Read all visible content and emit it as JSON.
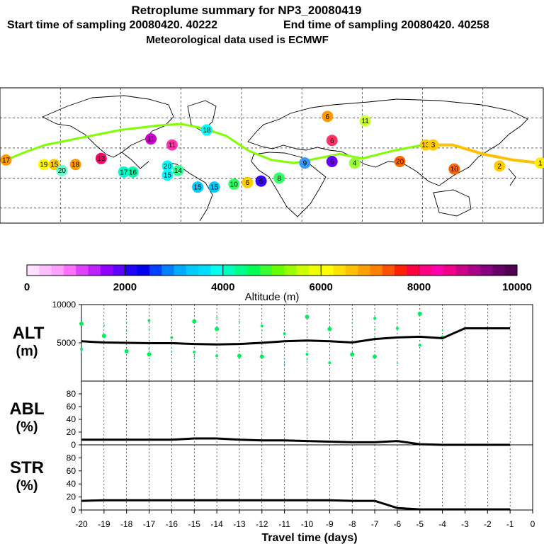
{
  "header": {
    "title": "Retroplume summary for NP3_20080419",
    "start_time": "Start time of sampling 20080420. 40222",
    "end_time": "End time of sampling 20080420. 40258",
    "met_data": "Meteorological data used is ECMWF"
  },
  "colors": {
    "plume_line_early": "#ffc000",
    "plume_line_late": "#80ff00",
    "alt_points": "#00ee60",
    "profile_line": "#000000"
  },
  "chart_data": [
    {
      "type": "map",
      "title": "Retroplume trajectory map",
      "labels": [
        {
          "text": "17",
          "lon": -176,
          "lat": 42,
          "color": "#ff9900"
        },
        {
          "text": "19",
          "lon": -151,
          "lat": 39,
          "color": "#ffff00"
        },
        {
          "text": "15",
          "lon": -144,
          "lat": 39,
          "color": "#ffcc00"
        },
        {
          "text": "20",
          "lon": -139,
          "lat": 35,
          "color": "#66ffcc"
        },
        {
          "text": "18",
          "lon": -130,
          "lat": 39,
          "color": "#ff9900"
        },
        {
          "text": "13",
          "lon": -113,
          "lat": 43,
          "color": "#ff0066"
        },
        {
          "text": "17",
          "lon": -98,
          "lat": 34,
          "color": "#00ffcc"
        },
        {
          "text": "16",
          "lon": -92,
          "lat": 34,
          "color": "#00ffaa"
        },
        {
          "text": "11",
          "lon": -80,
          "lat": 56,
          "color": "#cc00cc"
        },
        {
          "text": "11",
          "lon": -66,
          "lat": 52,
          "color": "#ff33aa"
        },
        {
          "text": "20",
          "lon": -69,
          "lat": 38,
          "color": "#00ffff"
        },
        {
          "text": "15",
          "lon": -69,
          "lat": 32,
          "color": "#00ffff"
        },
        {
          "text": "14",
          "lon": -62,
          "lat": 35,
          "color": "#33ff99"
        },
        {
          "text": "18",
          "lon": -43,
          "lat": 62,
          "color": "#00ffff"
        },
        {
          "text": "15",
          "lon": -49,
          "lat": 24,
          "color": "#00ccff"
        },
        {
          "text": "15",
          "lon": -38,
          "lat": 24,
          "color": "#00ccff"
        },
        {
          "text": "10",
          "lon": -25,
          "lat": 26,
          "color": "#33ff66"
        },
        {
          "text": "6",
          "lon": -16,
          "lat": 27,
          "color": "#ffcc00"
        },
        {
          "text": "5",
          "lon": -7,
          "lat": 28,
          "color": "#3300ff"
        },
        {
          "text": "8",
          "lon": 5,
          "lat": 30,
          "color": "#33ff66"
        },
        {
          "text": "9",
          "lon": 22,
          "lat": 40,
          "color": "#3399ff"
        },
        {
          "text": "6",
          "lon": 40,
          "lat": 41,
          "color": "#6600ff"
        },
        {
          "text": "4",
          "lon": 55,
          "lat": 40,
          "color": "#99ff33"
        },
        {
          "text": "6",
          "lon": 40,
          "lat": 55,
          "color": "#ff3366"
        },
        {
          "text": "6",
          "lon": 37,
          "lat": 71,
          "color": "#ff9900"
        },
        {
          "text": "11",
          "lon": 62,
          "lat": 68,
          "color": "#ccff33"
        },
        {
          "text": "20",
          "lon": 85,
          "lat": 41,
          "color": "#ff6600"
        },
        {
          "text": "13",
          "lon": 102,
          "lat": 52,
          "color": "#ffcc00"
        },
        {
          "text": "3",
          "lon": 107,
          "lat": 52,
          "color": "#ffcc00"
        },
        {
          "text": "10",
          "lon": 121,
          "lat": 36,
          "color": "#ff6600"
        },
        {
          "text": "2",
          "lon": 151,
          "lat": 38,
          "color": "#ffcc00"
        },
        {
          "text": "1",
          "lon": 178,
          "lat": 40,
          "color": "#ffee00"
        }
      ]
    },
    {
      "type": "colorbar",
      "xlabel": "Altitude (m)",
      "ticks": [
        0,
        2000,
        4000,
        6000,
        8000,
        10000
      ],
      "range": [
        0,
        10000
      ],
      "colors": [
        "#ffe0ff",
        "#ffbfff",
        "#ff9fff",
        "#ff70ff",
        "#e040ff",
        "#c020ff",
        "#9000ff",
        "#6000ff",
        "#2000ff",
        "#0000ee",
        "#0040ff",
        "#0080ff",
        "#00aaff",
        "#00ccff",
        "#00ddff",
        "#00ffee",
        "#00ffbb",
        "#00ff88",
        "#00ff55",
        "#33ff33",
        "#66ff00",
        "#99ff00",
        "#ccff00",
        "#eeff00",
        "#ffff00",
        "#ffe000",
        "#ffc000",
        "#ffa000",
        "#ff8000",
        "#ff5000",
        "#ff2000",
        "#ff0040",
        "#ff0080",
        "#ff00aa",
        "#ee0088",
        "#cc0088",
        "#aa0088",
        "#880080",
        "#660066",
        "#500050"
      ]
    },
    {
      "type": "scatter",
      "ylabel_line1": "ALT",
      "ylabel_line2": "(m)",
      "ylim": [
        0,
        10000
      ],
      "yticks": [
        5000,
        10000
      ],
      "xlim": [
        -20,
        0
      ],
      "median_line": {
        "x": [
          -20,
          -19,
          -18,
          -17,
          -16,
          -15,
          -14,
          -13,
          -12,
          -11,
          -10,
          -9,
          -8,
          -7,
          -6,
          -5,
          -4,
          -3,
          -2,
          -1
        ],
        "y": [
          5200,
          5050,
          5000,
          4950,
          4950,
          4850,
          4800,
          4850,
          5000,
          5200,
          5300,
          5200,
          5050,
          5500,
          5700,
          5800,
          5600,
          6900,
          6900,
          6900
        ]
      },
      "points": [
        {
          "x": -20,
          "y": [
            7500,
            6000,
            4200,
            3800
          ]
        },
        {
          "x": -19,
          "y": [
            7300,
            5900,
            3600
          ]
        },
        {
          "x": -18,
          "y": [
            7700,
            6500,
            3900,
            3400
          ]
        },
        {
          "x": -17,
          "y": [
            7900,
            6800,
            4200,
            3500
          ]
        },
        {
          "x": -16,
          "y": [
            7300,
            5700,
            4300,
            3800
          ]
        },
        {
          "x": -15,
          "y": [
            7800,
            6500,
            3800,
            3200
          ]
        },
        {
          "x": -14,
          "y": [
            8300,
            6800,
            3900,
            3300
          ]
        },
        {
          "x": -13,
          "y": [
            7800,
            6600,
            3300
          ]
        },
        {
          "x": -12,
          "y": [
            7200,
            6600,
            3700,
            3200
          ]
        },
        {
          "x": -11,
          "y": [
            8500,
            6200,
            2900,
            2200
          ]
        },
        {
          "x": -10,
          "y": [
            8400,
            6100,
            3500,
            2800
          ]
        },
        {
          "x": -9,
          "y": [
            8000,
            6800,
            3000,
            2400
          ]
        },
        {
          "x": -8,
          "y": [
            7600,
            5200,
            3500,
            2700
          ]
        },
        {
          "x": -7,
          "y": [
            8200,
            6800,
            5800,
            3200
          ]
        },
        {
          "x": -6,
          "y": [
            7800,
            6900,
            2300
          ]
        },
        {
          "x": -5,
          "y": [
            8800,
            5800,
            4700
          ]
        },
        {
          "x": -4,
          "y": [
            6600,
            5700
          ]
        },
        {
          "x": -3,
          "y": [
            7000
          ]
        },
        {
          "x": -2,
          "y": [
            6900
          ]
        },
        {
          "x": -1,
          "y": [
            6900
          ]
        }
      ]
    },
    {
      "type": "line",
      "ylabel_line1": "ABL",
      "ylabel_line2": "(%)",
      "ylim": [
        0,
        100
      ],
      "yticks": [
        0,
        20,
        40,
        60,
        80
      ],
      "x": [
        -20,
        -19,
        -18,
        -17,
        -16,
        -15,
        -14,
        -13,
        -12,
        -11,
        -10,
        -9,
        -8,
        -7,
        -6,
        -5,
        -4,
        -3,
        -2,
        -1
      ],
      "y": [
        8,
        8,
        8,
        8,
        8,
        10,
        10,
        8,
        7,
        7,
        6,
        5,
        4,
        4,
        6,
        1,
        0,
        0,
        0,
        0
      ]
    },
    {
      "type": "line",
      "ylabel_line1": "STR",
      "ylabel_line2": "(%)",
      "ylim": [
        0,
        100
      ],
      "yticks": [
        0,
        20,
        40,
        60,
        80
      ],
      "x": [
        -20,
        -19,
        -18,
        -17,
        -16,
        -15,
        -14,
        -13,
        -12,
        -11,
        -10,
        -9,
        -8,
        -7,
        -6,
        -5,
        -4,
        -3,
        -2,
        -1
      ],
      "y": [
        14,
        15,
        15,
        15,
        15,
        15,
        15,
        15,
        15,
        15,
        15,
        15,
        14,
        14,
        3,
        1,
        1,
        1,
        1,
        1
      ],
      "xlabel": "Travel time (days)",
      "xticks": [
        -20,
        -19,
        -18,
        -17,
        -16,
        -15,
        -14,
        -13,
        -12,
        -11,
        -10,
        -9,
        -8,
        -7,
        -6,
        -5,
        -4,
        -3,
        -2,
        -1,
        0
      ]
    }
  ]
}
